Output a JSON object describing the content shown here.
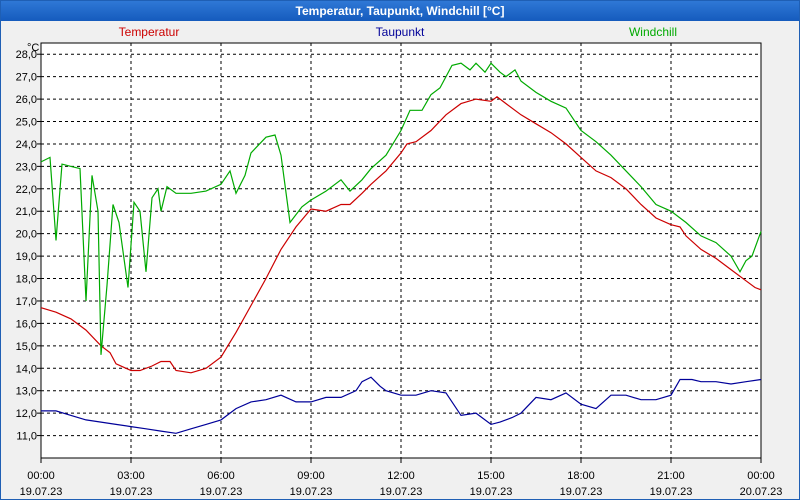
{
  "window": {
    "title": "Temperatur, Taupunkt, Windchill [°C]"
  },
  "chart_data": {
    "type": "line",
    "title": "Temperatur, Taupunkt, Windchill [°C]",
    "ylabel": "°C",
    "ylim": [
      10.0,
      28.5
    ],
    "xlim_hours": [
      0,
      24
    ],
    "grid": true,
    "yticks": [
      "11,0",
      "12,0",
      "13,0",
      "14,0",
      "15,0",
      "16,0",
      "17,0",
      "18,0",
      "19,0",
      "20,0",
      "21,0",
      "22,0",
      "23,0",
      "24,0",
      "25,0",
      "26,0",
      "27,0",
      "28,0"
    ],
    "ytick_values": [
      11,
      12,
      13,
      14,
      15,
      16,
      17,
      18,
      19,
      20,
      21,
      22,
      23,
      24,
      25,
      26,
      27,
      28
    ],
    "xticks": [
      {
        "time": "00:00",
        "date": "19.07.23"
      },
      {
        "time": "03:00",
        "date": "19.07.23"
      },
      {
        "time": "06:00",
        "date": "19.07.23"
      },
      {
        "time": "09:00",
        "date": "19.07.23"
      },
      {
        "time": "12:00",
        "date": "19.07.23"
      },
      {
        "time": "15:00",
        "date": "19.07.23"
      },
      {
        "time": "18:00",
        "date": "19.07.23"
      },
      {
        "time": "21:00",
        "date": "19.07.23"
      },
      {
        "time": "00:00",
        "date": "20.07.23"
      }
    ],
    "series": [
      {
        "name": "Temperatur",
        "color": "#cc0000",
        "points": [
          [
            0,
            16.7
          ],
          [
            0.5,
            16.5
          ],
          [
            1,
            16.2
          ],
          [
            1.5,
            15.7
          ],
          [
            2,
            15.0
          ],
          [
            2.3,
            14.7
          ],
          [
            2.5,
            14.2
          ],
          [
            3,
            13.9
          ],
          [
            3.3,
            13.9
          ],
          [
            3.7,
            14.1
          ],
          [
            4,
            14.3
          ],
          [
            4.3,
            14.3
          ],
          [
            4.5,
            13.9
          ],
          [
            5,
            13.8
          ],
          [
            5.5,
            14.0
          ],
          [
            6,
            14.5
          ],
          [
            6.5,
            15.6
          ],
          [
            7,
            16.8
          ],
          [
            7.5,
            18.0
          ],
          [
            8,
            19.3
          ],
          [
            8.5,
            20.3
          ],
          [
            9,
            21.1
          ],
          [
            9.5,
            21.0
          ],
          [
            10,
            21.3
          ],
          [
            10.3,
            21.3
          ],
          [
            10.7,
            21.8
          ],
          [
            11,
            22.2
          ],
          [
            11.5,
            22.8
          ],
          [
            12,
            23.6
          ],
          [
            12.2,
            24.0
          ],
          [
            12.5,
            24.1
          ],
          [
            13,
            24.6
          ],
          [
            13.5,
            25.3
          ],
          [
            14,
            25.8
          ],
          [
            14.5,
            26.0
          ],
          [
            15,
            25.9
          ],
          [
            15.2,
            26.1
          ],
          [
            15.5,
            25.8
          ],
          [
            16,
            25.3
          ],
          [
            16.5,
            24.9
          ],
          [
            17,
            24.5
          ],
          [
            17.5,
            24.0
          ],
          [
            18,
            23.4
          ],
          [
            18.5,
            22.8
          ],
          [
            19,
            22.5
          ],
          [
            19.5,
            22.0
          ],
          [
            20,
            21.3
          ],
          [
            20.5,
            20.7
          ],
          [
            21,
            20.4
          ],
          [
            21.3,
            20.3
          ],
          [
            21.5,
            19.9
          ],
          [
            22,
            19.3
          ],
          [
            22.5,
            18.9
          ],
          [
            23,
            18.4
          ],
          [
            23.5,
            17.9
          ],
          [
            23.8,
            17.6
          ],
          [
            24,
            17.5
          ]
        ]
      },
      {
        "name": "Taupunkt",
        "color": "#000099",
        "points": [
          [
            0,
            12.1
          ],
          [
            0.5,
            12.1
          ],
          [
            1,
            11.9
          ],
          [
            1.5,
            11.7
          ],
          [
            2,
            11.6
          ],
          [
            2.5,
            11.5
          ],
          [
            3,
            11.4
          ],
          [
            3.5,
            11.3
          ],
          [
            4,
            11.2
          ],
          [
            4.5,
            11.1
          ],
          [
            5,
            11.3
          ],
          [
            5.5,
            11.5
          ],
          [
            6,
            11.7
          ],
          [
            6.5,
            12.2
          ],
          [
            7,
            12.5
          ],
          [
            7.5,
            12.6
          ],
          [
            8,
            12.8
          ],
          [
            8.5,
            12.5
          ],
          [
            9,
            12.5
          ],
          [
            9.5,
            12.7
          ],
          [
            10,
            12.7
          ],
          [
            10.5,
            13.0
          ],
          [
            10.7,
            13.4
          ],
          [
            11,
            13.6
          ],
          [
            11.3,
            13.2
          ],
          [
            11.5,
            13.0
          ],
          [
            12,
            12.8
          ],
          [
            12.5,
            12.8
          ],
          [
            13,
            13.0
          ],
          [
            13.5,
            12.9
          ],
          [
            14,
            11.9
          ],
          [
            14.5,
            12.0
          ],
          [
            15,
            11.5
          ],
          [
            15.3,
            11.6
          ],
          [
            15.7,
            11.8
          ],
          [
            16,
            12.0
          ],
          [
            16.5,
            12.7
          ],
          [
            17,
            12.6
          ],
          [
            17.5,
            12.9
          ],
          [
            18,
            12.4
          ],
          [
            18.5,
            12.2
          ],
          [
            19,
            12.8
          ],
          [
            19.5,
            12.8
          ],
          [
            20,
            12.6
          ],
          [
            20.5,
            12.6
          ],
          [
            21,
            12.8
          ],
          [
            21.3,
            13.5
          ],
          [
            21.7,
            13.5
          ],
          [
            22,
            13.4
          ],
          [
            22.5,
            13.4
          ],
          [
            23,
            13.3
          ],
          [
            23.5,
            13.4
          ],
          [
            24,
            13.5
          ]
        ]
      },
      {
        "name": "Windchill",
        "color": "#00aa00",
        "points": [
          [
            0,
            23.2
          ],
          [
            0.3,
            23.4
          ],
          [
            0.5,
            19.7
          ],
          [
            0.7,
            23.1
          ],
          [
            1,
            23.0
          ],
          [
            1.3,
            22.9
          ],
          [
            1.5,
            17.0
          ],
          [
            1.7,
            22.6
          ],
          [
            1.9,
            21.0
          ],
          [
            2,
            14.6
          ],
          [
            2.2,
            17.7
          ],
          [
            2.4,
            21.3
          ],
          [
            2.6,
            20.5
          ],
          [
            2.9,
            17.6
          ],
          [
            3.1,
            21.4
          ],
          [
            3.3,
            21.0
          ],
          [
            3.5,
            18.3
          ],
          [
            3.7,
            21.6
          ],
          [
            3.9,
            22.0
          ],
          [
            4,
            21.0
          ],
          [
            4.2,
            22.1
          ],
          [
            4.5,
            21.8
          ],
          [
            5,
            21.8
          ],
          [
            5.5,
            21.9
          ],
          [
            6,
            22.2
          ],
          [
            6.3,
            22.8
          ],
          [
            6.5,
            21.8
          ],
          [
            6.8,
            22.6
          ],
          [
            7,
            23.6
          ],
          [
            7.5,
            24.3
          ],
          [
            7.8,
            24.4
          ],
          [
            8,
            23.5
          ],
          [
            8.3,
            20.5
          ],
          [
            8.7,
            21.2
          ],
          [
            9,
            21.5
          ],
          [
            9.5,
            21.9
          ],
          [
            10,
            22.4
          ],
          [
            10.3,
            21.9
          ],
          [
            10.7,
            22.4
          ],
          [
            11,
            22.9
          ],
          [
            11.5,
            23.5
          ],
          [
            12,
            24.6
          ],
          [
            12.3,
            25.5
          ],
          [
            12.7,
            25.5
          ],
          [
            13,
            26.2
          ],
          [
            13.3,
            26.5
          ],
          [
            13.7,
            27.5
          ],
          [
            14,
            27.6
          ],
          [
            14.3,
            27.3
          ],
          [
            14.5,
            27.6
          ],
          [
            14.8,
            27.2
          ],
          [
            15,
            27.6
          ],
          [
            15.3,
            27.2
          ],
          [
            15.5,
            27.0
          ],
          [
            15.8,
            27.3
          ],
          [
            16,
            26.8
          ],
          [
            16.5,
            26.3
          ],
          [
            17,
            25.9
          ],
          [
            17.5,
            25.6
          ],
          [
            18,
            24.6
          ],
          [
            18.5,
            24.1
          ],
          [
            19,
            23.5
          ],
          [
            19.5,
            22.8
          ],
          [
            20,
            22.1
          ],
          [
            20.5,
            21.3
          ],
          [
            21,
            21.0
          ],
          [
            21.5,
            20.5
          ],
          [
            22,
            19.9
          ],
          [
            22.5,
            19.6
          ],
          [
            23,
            19.0
          ],
          [
            23.3,
            18.3
          ],
          [
            23.5,
            18.8
          ],
          [
            23.7,
            19.0
          ],
          [
            24,
            20.1
          ]
        ]
      }
    ]
  }
}
